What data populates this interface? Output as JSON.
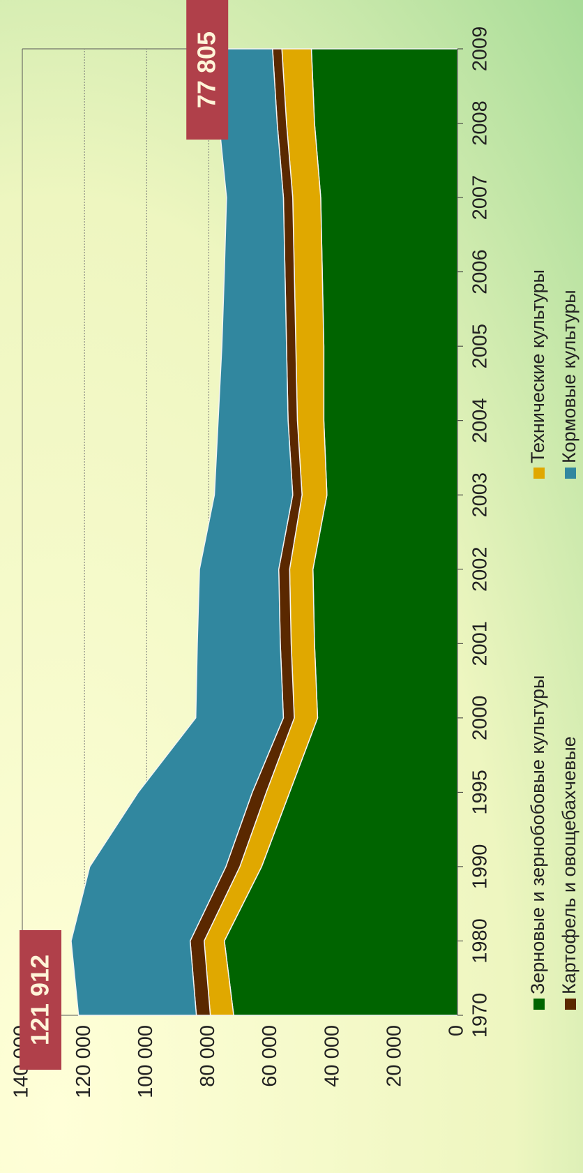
{
  "chart_data": {
    "type": "stacked_area",
    "categories": [
      "1970",
      "1980",
      "1990",
      "1995",
      "2000",
      "2001",
      "2002",
      "2003",
      "2004",
      "2005",
      "2006",
      "2007",
      "2008",
      "2009"
    ],
    "series": [
      {
        "name": "Зерновые и зернобобовые культуры",
        "color": "#006400",
        "values": [
          72000,
          75000,
          63000,
          54000,
          45000,
          46000,
          46500,
          42000,
          43000,
          43000,
          43500,
          44000,
          46000,
          47000
        ]
      },
      {
        "name": "Технические культуры",
        "color": "#e0a800",
        "values": [
          7500,
          6500,
          7000,
          7500,
          7500,
          7500,
          7500,
          8000,
          8500,
          9000,
          9000,
          9000,
          9000,
          9500
        ]
      },
      {
        "name": "Картофель и овощебахчевые",
        "color": "#5a2800",
        "values": [
          4500,
          4500,
          4500,
          4500,
          3500,
          3500,
          3500,
          3000,
          3000,
          3000,
          3000,
          3000,
          3000,
          3000
        ]
      },
      {
        "name": "Кормовые культуры",
        "color": "#31879f",
        "values": [
          37912,
          38300,
          43800,
          36700,
          28200,
          26700,
          25500,
          25200,
          22500,
          20800,
          19500,
          18300,
          18700,
          18305
        ]
      }
    ],
    "ylim": [
      0,
      140000
    ],
    "yticks": [
      0,
      {
        "value": 20000,
        "label": "20 000"
      },
      {
        "value": 40000,
        "label": "40 000"
      },
      {
        "value": 60000,
        "label": "60 000"
      },
      {
        "value": 80000,
        "label": "80 000"
      },
      {
        "value": 100000,
        "label": "100 000"
      },
      {
        "value": 120000,
        "label": "120 000"
      },
      {
        "value": 140000,
        "label": "140 000"
      }
    ],
    "grid": true,
    "annotations": [
      {
        "x": "1970",
        "value": 121912,
        "text": "121 912"
      },
      {
        "x": "2009",
        "value": 77805,
        "text": "77 805"
      }
    ]
  }
}
